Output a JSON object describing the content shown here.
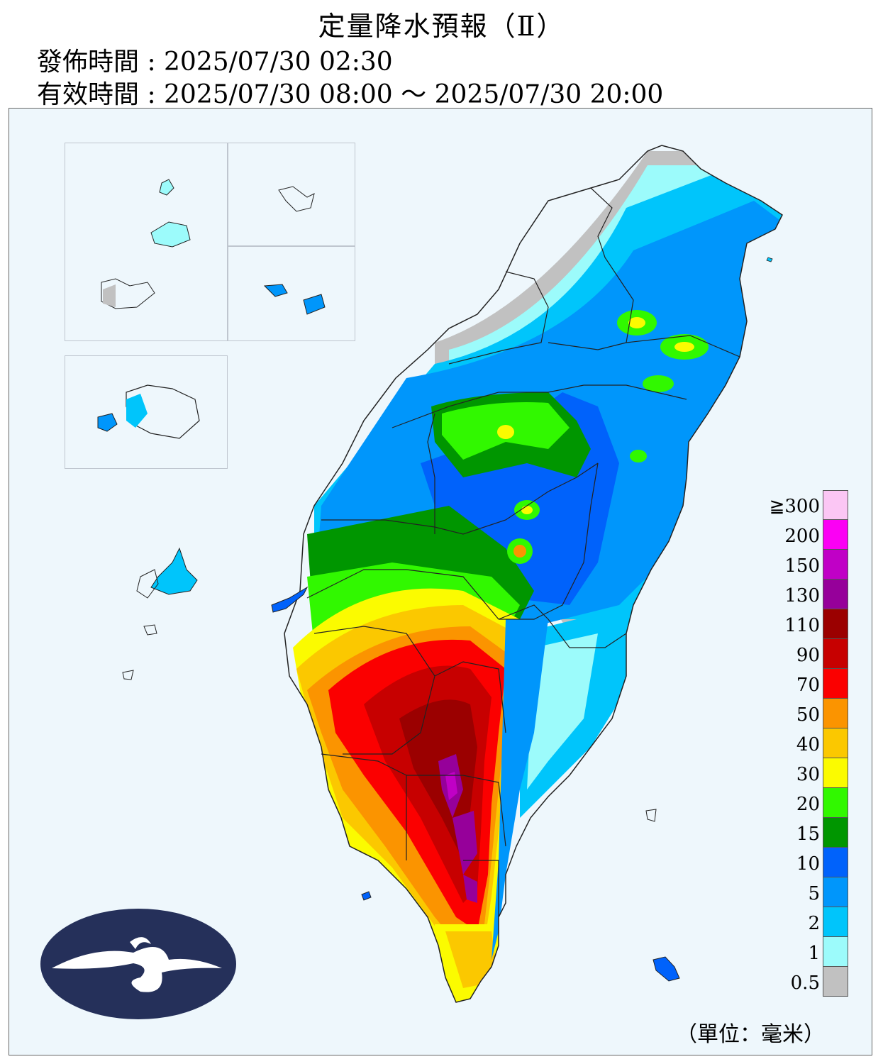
{
  "header": {
    "title": "定量降水預報（Ⅱ）",
    "issue_label": "發佈時間",
    "issue_time": "2025/07/30 02:30",
    "valid_label": "有效時間",
    "valid_start": "2025/07/30 08:00",
    "valid_separator": "～",
    "valid_end": "2025/07/30 20:00"
  },
  "legend": {
    "unit": "（單位：毫米）",
    "items": [
      {
        "label": "≧300",
        "color": "#fbc6f4"
      },
      {
        "label": "200",
        "color": "#fb00f4"
      },
      {
        "label": "150",
        "color": "#c000c6"
      },
      {
        "label": "130",
        "color": "#96009a"
      },
      {
        "label": "110",
        "color": "#9b0000"
      },
      {
        "label": "90",
        "color": "#c70000"
      },
      {
        "label": "70",
        "color": "#fb0000"
      },
      {
        "label": "50",
        "color": "#fb9400"
      },
      {
        "label": "40",
        "color": "#fbc800"
      },
      {
        "label": "30",
        "color": "#fbfb00"
      },
      {
        "label": "20",
        "color": "#31f800"
      },
      {
        "label": "15",
        "color": "#009600"
      },
      {
        "label": "10",
        "color": "#0062fb"
      },
      {
        "label": "5",
        "color": "#0096fb"
      },
      {
        "label": "2",
        "color": "#00c5fb"
      },
      {
        "label": "1",
        "color": "#9cfbfb"
      },
      {
        "label": "0.5",
        "color": "#c1c1c1"
      }
    ]
  },
  "map": {
    "background_color": "#eef7fc",
    "logo": "cwa-logo"
  }
}
